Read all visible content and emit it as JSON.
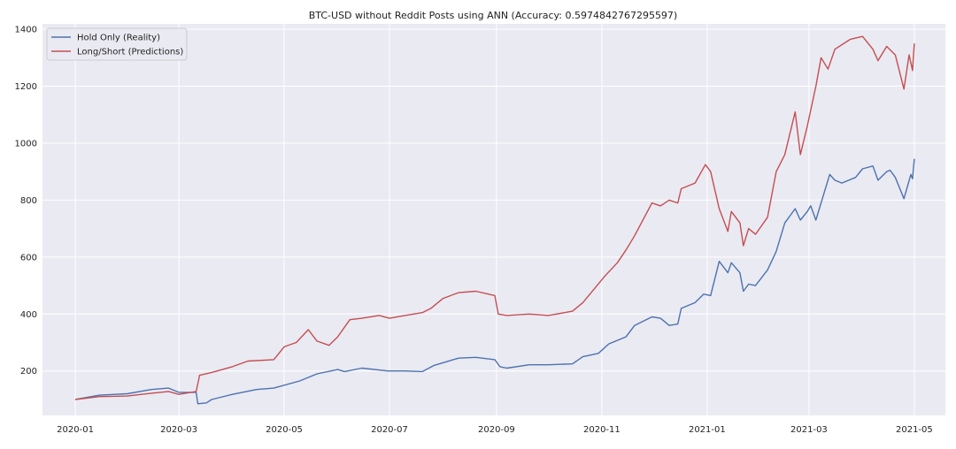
{
  "chart_data": {
    "type": "line",
    "title": "BTC-USD without Reddit Posts using ANN (Accuracy: 0.5974842767295597)",
    "xlabel": "",
    "ylabel": "",
    "x_range": [
      "2019-12-13",
      "2021-05-19"
    ],
    "ylim": [
      44,
      1419
    ],
    "x_ticks": [
      "2020-01",
      "2020-03",
      "2020-05",
      "2020-07",
      "2020-09",
      "2020-11",
      "2021-01",
      "2021-03",
      "2021-05"
    ],
    "y_ticks": [
      200,
      400,
      600,
      800,
      1000,
      1200,
      1400
    ],
    "grid": true,
    "legend_position": "top-left",
    "series": [
      {
        "name": "Hold Only (Reality)",
        "color": "#4c72b0",
        "points": [
          [
            "2020-01-01",
            100
          ],
          [
            "2020-01-15",
            115
          ],
          [
            "2020-01-31",
            120
          ],
          [
            "2020-02-14",
            135
          ],
          [
            "2020-02-24",
            140
          ],
          [
            "2020-03-01",
            125
          ],
          [
            "2020-03-11",
            125
          ],
          [
            "2020-03-12",
            85
          ],
          [
            "2020-03-17",
            88
          ],
          [
            "2020-03-20",
            100
          ],
          [
            "2020-04-01",
            118
          ],
          [
            "2020-04-15",
            135
          ],
          [
            "2020-04-25",
            140
          ],
          [
            "2020-05-10",
            165
          ],
          [
            "2020-05-20",
            190
          ],
          [
            "2020-06-01",
            205
          ],
          [
            "2020-06-05",
            198
          ],
          [
            "2020-06-15",
            210
          ],
          [
            "2020-06-30",
            200
          ],
          [
            "2020-07-10",
            200
          ],
          [
            "2020-07-20",
            198
          ],
          [
            "2020-07-27",
            220
          ],
          [
            "2020-08-10",
            245
          ],
          [
            "2020-08-20",
            248
          ],
          [
            "2020-08-31",
            240
          ],
          [
            "2020-09-03",
            215
          ],
          [
            "2020-09-07",
            210
          ],
          [
            "2020-09-20",
            222
          ],
          [
            "2020-10-01",
            222
          ],
          [
            "2020-10-15",
            225
          ],
          [
            "2020-10-21",
            250
          ],
          [
            "2020-10-30",
            262
          ],
          [
            "2020-11-05",
            295
          ],
          [
            "2020-11-15",
            320
          ],
          [
            "2020-11-20",
            360
          ],
          [
            "2020-11-30",
            390
          ],
          [
            "2020-12-05",
            385
          ],
          [
            "2020-12-10",
            360
          ],
          [
            "2020-12-15",
            365
          ],
          [
            "2020-12-17",
            420
          ],
          [
            "2020-12-25",
            440
          ],
          [
            "2020-12-30",
            470
          ],
          [
            "2021-01-03",
            465
          ],
          [
            "2021-01-08",
            585
          ],
          [
            "2021-01-13",
            545
          ],
          [
            "2021-01-15",
            580
          ],
          [
            "2021-01-20",
            545
          ],
          [
            "2021-01-22",
            480
          ],
          [
            "2021-01-25",
            505
          ],
          [
            "2021-01-29",
            500
          ],
          [
            "2021-02-05",
            555
          ],
          [
            "2021-02-10",
            620
          ],
          [
            "2021-02-15",
            720
          ],
          [
            "2021-02-21",
            770
          ],
          [
            "2021-02-24",
            730
          ],
          [
            "2021-02-28",
            760
          ],
          [
            "2021-03-02",
            780
          ],
          [
            "2021-03-05",
            730
          ],
          [
            "2021-03-13",
            890
          ],
          [
            "2021-03-16",
            870
          ],
          [
            "2021-03-20",
            860
          ],
          [
            "2021-03-28",
            880
          ],
          [
            "2021-04-01",
            910
          ],
          [
            "2021-04-07",
            920
          ],
          [
            "2021-04-10",
            870
          ],
          [
            "2021-04-15",
            900
          ],
          [
            "2021-04-17",
            905
          ],
          [
            "2021-04-20",
            880
          ],
          [
            "2021-04-25",
            805
          ],
          [
            "2021-04-29",
            890
          ],
          [
            "2021-04-30",
            875
          ],
          [
            "2021-05-01",
            945
          ]
        ]
      },
      {
        "name": "Long/Short (Predictions)",
        "color": "#c44e52",
        "points": [
          [
            "2020-01-01",
            100
          ],
          [
            "2020-01-15",
            110
          ],
          [
            "2020-01-31",
            112
          ],
          [
            "2020-02-14",
            122
          ],
          [
            "2020-02-24",
            128
          ],
          [
            "2020-03-01",
            118
          ],
          [
            "2020-03-11",
            128
          ],
          [
            "2020-03-13",
            185
          ],
          [
            "2020-03-20",
            195
          ],
          [
            "2020-04-01",
            215
          ],
          [
            "2020-04-10",
            235
          ],
          [
            "2020-04-25",
            240
          ],
          [
            "2020-05-01",
            285
          ],
          [
            "2020-05-08",
            300
          ],
          [
            "2020-05-15",
            345
          ],
          [
            "2020-05-20",
            305
          ],
          [
            "2020-05-27",
            290
          ],
          [
            "2020-06-01",
            320
          ],
          [
            "2020-06-08",
            380
          ],
          [
            "2020-06-15",
            385
          ],
          [
            "2020-06-25",
            395
          ],
          [
            "2020-07-01",
            385
          ],
          [
            "2020-07-10",
            395
          ],
          [
            "2020-07-20",
            405
          ],
          [
            "2020-07-25",
            420
          ],
          [
            "2020-08-01",
            455
          ],
          [
            "2020-08-10",
            475
          ],
          [
            "2020-08-20",
            480
          ],
          [
            "2020-08-31",
            465
          ],
          [
            "2020-09-02",
            400
          ],
          [
            "2020-09-07",
            395
          ],
          [
            "2020-09-20",
            400
          ],
          [
            "2020-10-01",
            395
          ],
          [
            "2020-10-15",
            410
          ],
          [
            "2020-10-21",
            440
          ],
          [
            "2020-11-03",
            535
          ],
          [
            "2020-11-10",
            580
          ],
          [
            "2020-11-15",
            625
          ],
          [
            "2020-11-20",
            675
          ],
          [
            "2020-11-30",
            790
          ],
          [
            "2020-12-05",
            780
          ],
          [
            "2020-12-10",
            800
          ],
          [
            "2020-12-15",
            790
          ],
          [
            "2020-12-17",
            840
          ],
          [
            "2020-12-25",
            860
          ],
          [
            "2020-12-31",
            925
          ],
          [
            "2021-01-03",
            900
          ],
          [
            "2021-01-08",
            770
          ],
          [
            "2021-01-13",
            690
          ],
          [
            "2021-01-15",
            760
          ],
          [
            "2021-01-20",
            720
          ],
          [
            "2021-01-22",
            640
          ],
          [
            "2021-01-25",
            700
          ],
          [
            "2021-01-29",
            680
          ],
          [
            "2021-02-05",
            740
          ],
          [
            "2021-02-10",
            900
          ],
          [
            "2021-02-15",
            960
          ],
          [
            "2021-02-21",
            1110
          ],
          [
            "2021-02-24",
            960
          ],
          [
            "2021-02-28",
            1060
          ],
          [
            "2021-03-05",
            1200
          ],
          [
            "2021-03-08",
            1300
          ],
          [
            "2021-03-12",
            1260
          ],
          [
            "2021-03-16",
            1330
          ],
          [
            "2021-03-25",
            1365
          ],
          [
            "2021-04-01",
            1375
          ],
          [
            "2021-04-07",
            1330
          ],
          [
            "2021-04-10",
            1290
          ],
          [
            "2021-04-15",
            1340
          ],
          [
            "2021-04-20",
            1310
          ],
          [
            "2021-04-25",
            1190
          ],
          [
            "2021-04-28",
            1310
          ],
          [
            "2021-04-30",
            1255
          ],
          [
            "2021-05-01",
            1350
          ]
        ]
      }
    ]
  }
}
